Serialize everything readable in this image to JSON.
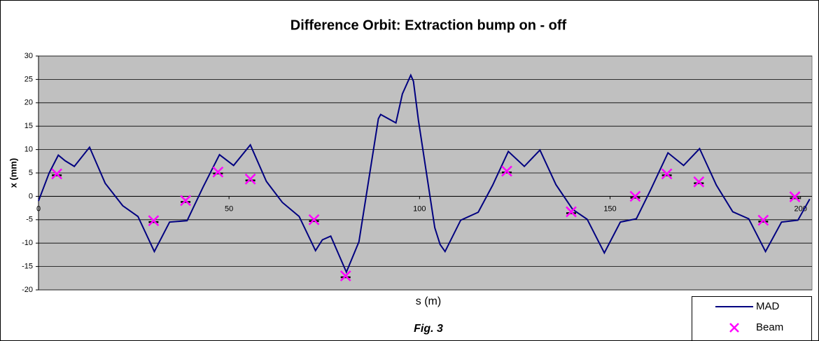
{
  "chart_data": {
    "type": "scatter",
    "title": "Difference Orbit:   Extraction bump on - off",
    "x_label": "s (m)",
    "y_label": "x (mm)",
    "caption": "Fig. 3",
    "xlim": [
      0,
      203
    ],
    "xticks": [
      0,
      50,
      100,
      150,
      200
    ],
    "ylim": [
      -20,
      30
    ],
    "yticks": [
      -20,
      -15,
      -10,
      -5,
      0,
      5,
      10,
      15,
      20,
      25,
      30
    ],
    "grid": true,
    "legend": "bottom-right",
    "series": [
      {
        "name": "MAD",
        "color": "#000080",
        "style": "line",
        "x": [
          0,
          2.8,
          5.2,
          7,
          9.4,
          13.4,
          17.5,
          22.1,
          26.1,
          30.4,
          34.4,
          39,
          43.2,
          47.5,
          51.2,
          55.6,
          59.8,
          64,
          68.4,
          72.7,
          74.5,
          76.7,
          80.8,
          84.1,
          89.2,
          89.8,
          93.8,
          95.5,
          97.7,
          98.4,
          99.7,
          104,
          105.4,
          106.7,
          110.8,
          115.4,
          119.2,
          123.3,
          127.5,
          131.6,
          135.8,
          140.2,
          144,
          148.5,
          152.7,
          156.9,
          160.6,
          165.2,
          169.3,
          173.5,
          177.9,
          182.2,
          186.4,
          190.8,
          195,
          199.3,
          202.4
        ],
        "values": [
          -1,
          5,
          8.8,
          7.6,
          6.4,
          10.5,
          2.8,
          -2,
          -4.3,
          -11.8,
          -5.5,
          -5.2,
          2,
          8.9,
          6.6,
          11,
          3.2,
          -1.3,
          -4.3,
          -11.6,
          -9.3,
          -8.5,
          -16.2,
          -9.7,
          16.6,
          17.5,
          15.7,
          21.9,
          25.9,
          24.6,
          16.3,
          -6.7,
          -10.3,
          -11.8,
          -5.1,
          -3.4,
          2.4,
          9.6,
          6.4,
          9.9,
          2.5,
          -2.8,
          -4.9,
          -12.1,
          -5.5,
          -4.8,
          1.3,
          9.3,
          6.6,
          10.2,
          2.4,
          -3.3,
          -4.8,
          -11.8,
          -5.5,
          -5.1,
          -0.6
        ]
      },
      {
        "name": "Beam",
        "color": "#ff00ff",
        "style": "marker",
        "x": [
          4.8,
          30.2,
          38.6,
          47.1,
          55.6,
          72.3,
          80.6,
          122.9,
          139.8,
          156.6,
          164.9,
          173.3,
          190.2,
          198.5
        ],
        "values": [
          4.8,
          -5.2,
          -0.9,
          5.2,
          3.7,
          -5,
          -17,
          5.4,
          -3.3,
          0,
          4.8,
          3.1,
          -5.1,
          -0.1
        ]
      }
    ]
  }
}
